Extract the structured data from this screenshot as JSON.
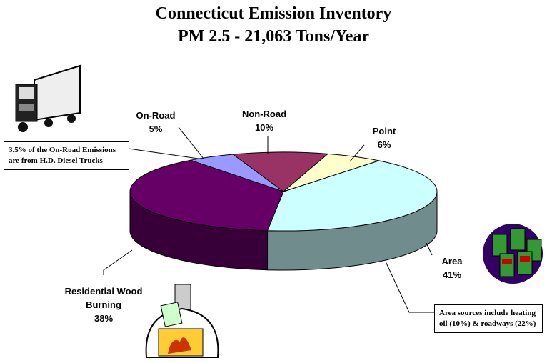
{
  "chart_data": {
    "type": "pie3d",
    "title": "Connecticut Emission Inventory",
    "subtitle": "PM 2.5 - 21,063 Tons/Year",
    "categories": [
      "Area",
      "Residential Wood Burning",
      "On-Road",
      "Non-Road",
      "Point"
    ],
    "values": [
      41,
      38,
      5,
      10,
      6
    ],
    "value_labels": [
      "41%",
      "38%",
      "5%",
      "10%",
      "6%"
    ],
    "colors": [
      "#ccffff",
      "#660066",
      "#9999ff",
      "#993366",
      "#ffffcc"
    ],
    "annotations": [
      "3.5% of the On-Road Emissions are from H.D. Diesel Trucks",
      "Area sources include heating oil (10%) & roadways (22%)"
    ]
  }
}
